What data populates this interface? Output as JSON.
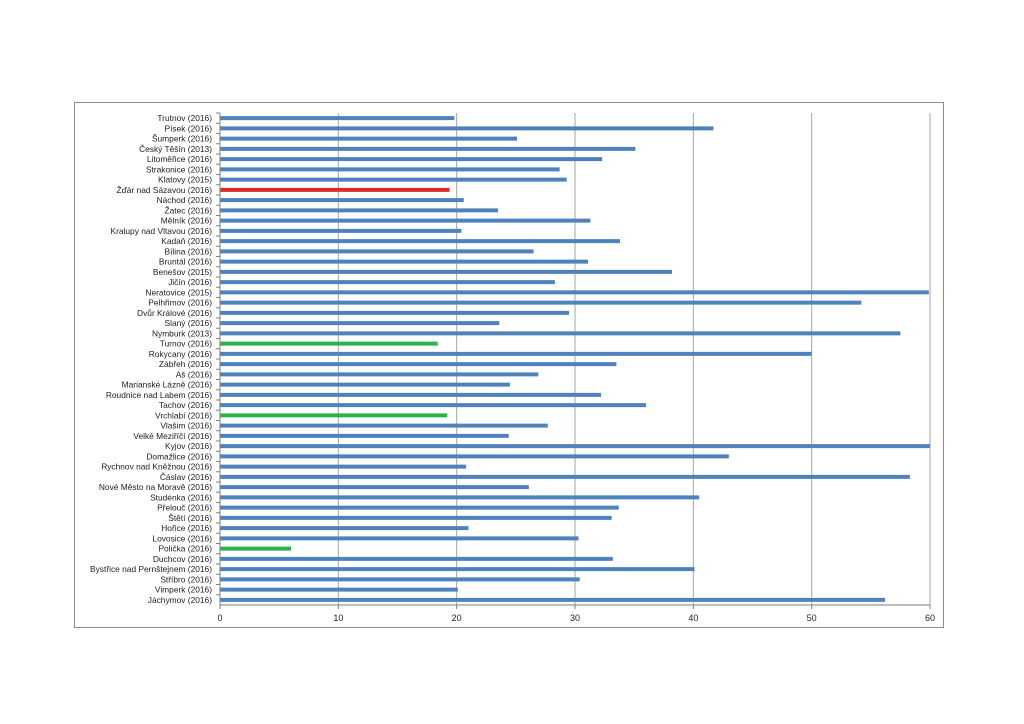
{
  "chart_data": {
    "type": "bar",
    "orientation": "horizontal",
    "categories": [
      "Trutnov (2016)",
      "Písek (2016)",
      "Šumperk (2016)",
      "Český Těšín (2013)",
      "Litoměřice (2016)",
      "Strakonice (2016)",
      "Klatovy (2015)",
      "Žďár nad Sázavou (2016)",
      "Náchod (2016)",
      "Žatec (2016)",
      "Mělník (2016)",
      "Kralupy nad Vltavou (2016)",
      "Kadaň (2016)",
      "Bílina (2016)",
      "Bruntál (2016)",
      "Benešov (2015)",
      "Jičín (2016)",
      "Neratovice (2015)",
      "Pelhřimov (2016)",
      "Dvůr Králové (2016)",
      "Slaný (2016)",
      "Nymburk (2013)",
      "Turnov (2016)",
      "Rokycany (2016)",
      "Zábřeh (2016)",
      "Aš (2016)",
      "Marianské Lázně (2016)",
      "Roudnice nad Labem (2016)",
      "Tachov (2016)",
      "Vrchlabí (2016)",
      "Vlašim (2016)",
      "Velké Meziříčí (2016)",
      "Kyjov (2016)",
      "Domažlice (2016)",
      "Rychnov nad Kněžnou (2016)",
      "Čáslav (2016)",
      "Nové Město na Moravě (2016)",
      "Studénka (2016)",
      "Přelouč (2016)",
      "Štětí (2016)",
      "Hořice (2016)",
      "Lovosice (2016)",
      "Polička (2016)",
      "Duchcov (2016)",
      "Bystřice nad Pernštejnem (2016)",
      "Stříbro (2016)",
      "Vimperk (2016)",
      "Jáchymov (2016)"
    ],
    "values": [
      19.8,
      41.7,
      25.1,
      35.1,
      32.3,
      28.7,
      29.3,
      19.4,
      20.6,
      23.5,
      31.3,
      20.4,
      33.8,
      26.5,
      31.1,
      38.2,
      28.3,
      59.9,
      54.2,
      29.5,
      23.6,
      57.5,
      18.4,
      50.0,
      33.5,
      26.9,
      24.5,
      32.2,
      36.0,
      19.2,
      27.7,
      24.4,
      60.0,
      43.0,
      20.8,
      58.3,
      26.1,
      40.5,
      33.7,
      33.1,
      21.0,
      30.3,
      6.0,
      33.2,
      40.1,
      30.4,
      20.1,
      56.2
    ],
    "bar_colors": [
      "#4f81bd",
      "#4f81bd",
      "#4f81bd",
      "#4f81bd",
      "#4f81bd",
      "#4f81bd",
      "#4f81bd",
      "#e02a2a",
      "#4f81bd",
      "#4f81bd",
      "#4f81bd",
      "#4f81bd",
      "#4f81bd",
      "#4f81bd",
      "#4f81bd",
      "#4f81bd",
      "#4f81bd",
      "#4f81bd",
      "#4f81bd",
      "#4f81bd",
      "#4f81bd",
      "#4f81bd",
      "#2eb24c",
      "#4f81bd",
      "#4f81bd",
      "#4f81bd",
      "#4f81bd",
      "#4f81bd",
      "#4f81bd",
      "#2eb24c",
      "#4f81bd",
      "#4f81bd",
      "#4f81bd",
      "#4f81bd",
      "#4f81bd",
      "#4f81bd",
      "#4f81bd",
      "#4f81bd",
      "#4f81bd",
      "#4f81bd",
      "#4f81bd",
      "#4f81bd",
      "#2eb24c",
      "#4f81bd",
      "#4f81bd",
      "#4f81bd",
      "#4f81bd",
      "#4f81bd"
    ],
    "xlim": [
      0,
      60
    ],
    "xticks": [
      0,
      10,
      20,
      30,
      40,
      50,
      60
    ],
    "title": "",
    "xlabel": "",
    "ylabel": "",
    "grid": "vertical major gridlines",
    "legend": "none",
    "colors": {
      "default_bar": "#4f81bd",
      "highlight_red": "#e02a2a",
      "highlight_green": "#2eb24c",
      "gridline": "#a6a6a6",
      "axis": "#7f7f7f",
      "frame": "#8c8c8c"
    }
  }
}
